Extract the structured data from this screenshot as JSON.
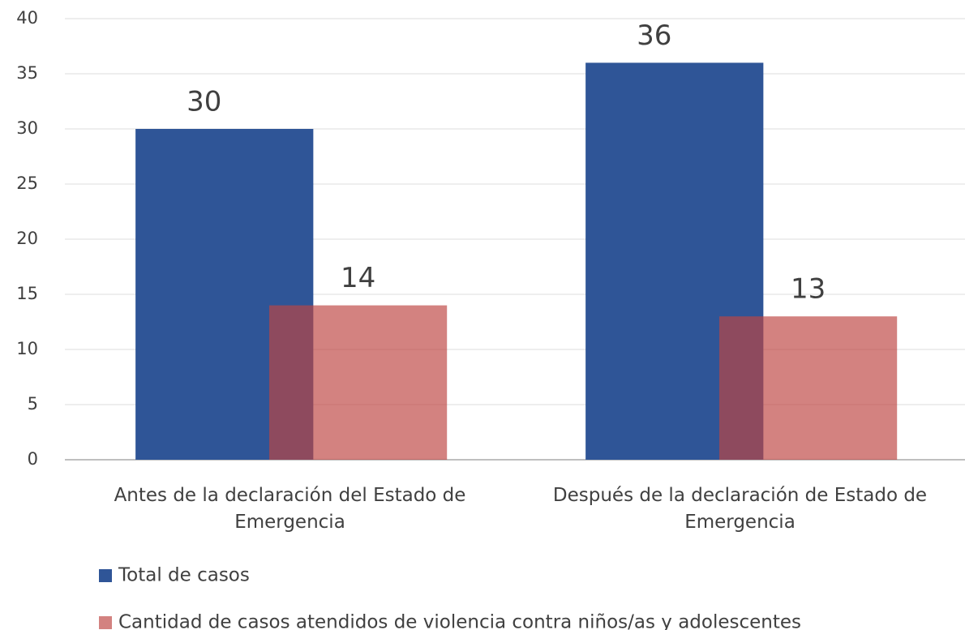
{
  "chart_data": {
    "type": "bar",
    "categories": [
      "Antes de la declaración del Estado de Emergencia",
      "Después de la declaración de Estado de Emergencia"
    ],
    "series": [
      {
        "name": "Total de casos",
        "color": "#2f5597",
        "values": [
          30,
          36
        ]
      },
      {
        "name": "Cantidad de casos atendidos de violencia contra niños/as y adolescentes",
        "color": "#be4542",
        "values": [
          14,
          13
        ]
      }
    ],
    "ylim": [
      0,
      40
    ],
    "yticks": [
      0,
      5,
      10,
      15,
      20,
      25,
      30,
      35,
      40
    ],
    "grid": true,
    "legend": "bottom"
  }
}
